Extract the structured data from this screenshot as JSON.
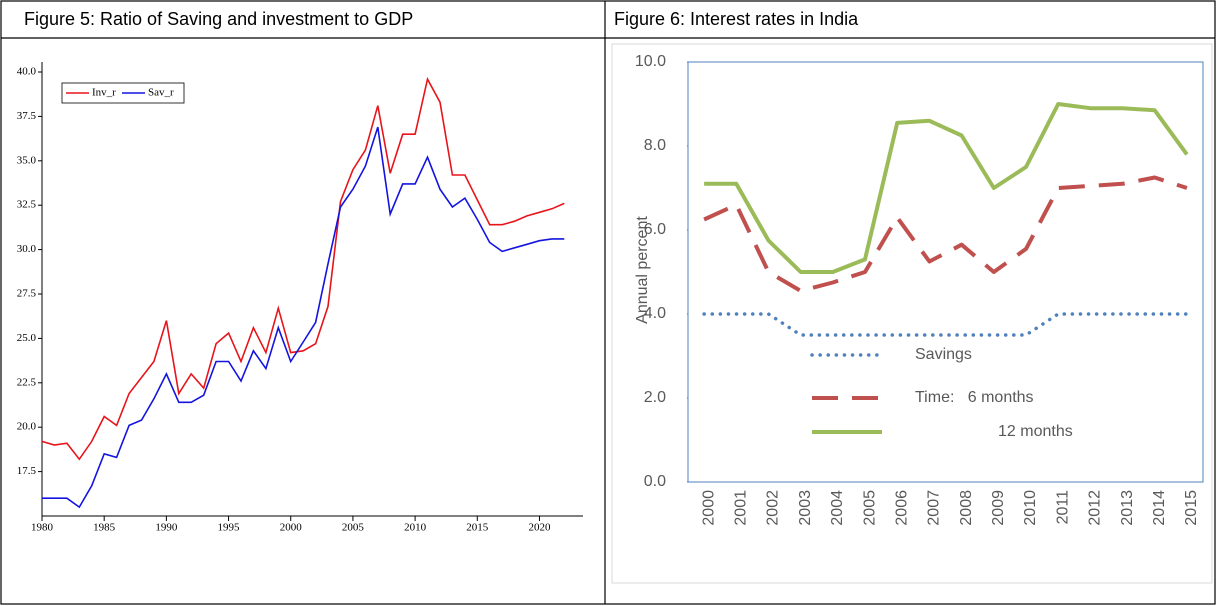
{
  "table": {
    "headers": [
      "Figure 5: Ratio of Saving and investment to GDP",
      "Figure 6: Interest rates in India"
    ]
  },
  "chart_data": [
    {
      "type": "line",
      "x": [
        1980,
        1981,
        1982,
        1983,
        1984,
        1985,
        1986,
        1987,
        1988,
        1989,
        1990,
        1991,
        1992,
        1993,
        1994,
        1995,
        1996,
        1997,
        1998,
        1999,
        2000,
        2001,
        2002,
        2003,
        2004,
        2005,
        2006,
        2007,
        2008,
        2009,
        2010,
        2011,
        2012,
        2013,
        2014,
        2015,
        2016,
        2017,
        2018,
        2019,
        2020,
        2021,
        2022
      ],
      "series": [
        {
          "name": "Inv_r",
          "color": "#e8141b",
          "values": [
            19.2,
            19.0,
            19.1,
            18.2,
            19.2,
            20.6,
            20.1,
            21.9,
            22.8,
            23.7,
            26.0,
            21.9,
            23.0,
            22.2,
            24.7,
            25.3,
            23.7,
            25.6,
            24.2,
            26.7,
            24.2,
            24.3,
            24.7,
            26.8,
            32.7,
            34.5,
            35.6,
            38.1,
            34.3,
            36.5,
            36.5,
            39.6,
            38.3,
            34.2,
            34.2,
            32.8,
            31.4,
            31.4,
            31.6,
            31.9,
            32.1,
            32.3,
            32.6
          ]
        },
        {
          "name": "Sav_r",
          "color": "#1414e0",
          "values": [
            16.0,
            16.0,
            16.0,
            15.5,
            16.7,
            18.5,
            18.3,
            20.1,
            20.4,
            21.6,
            23.0,
            21.4,
            21.4,
            21.8,
            23.7,
            23.7,
            22.6,
            24.3,
            23.3,
            25.6,
            23.7,
            24.8,
            25.9,
            29.2,
            32.4,
            33.4,
            34.7,
            36.9,
            32.0,
            33.7,
            33.7,
            35.2,
            33.4,
            32.4,
            32.9,
            31.7,
            30.4,
            29.9,
            30.1,
            30.3,
            30.5,
            30.6,
            30.6
          ]
        }
      ],
      "xlim": [
        1980,
        2023.5
      ],
      "xticks": [
        1980,
        1985,
        1990,
        1995,
        2000,
        2005,
        2010,
        2015,
        2020
      ],
      "ylim": [
        15,
        40
      ],
      "yticks": [
        17.5,
        {
          "value": 20,
          "label": "20.0"
        },
        22.5,
        {
          "value": 25,
          "label": "25.0"
        },
        27.5,
        {
          "value": 30,
          "label": "30.0"
        },
        32.5,
        {
          "value": 35,
          "label": "35.0"
        },
        37.5,
        {
          "value": 40,
          "label": "40.0"
        }
      ],
      "legend": "top-left"
    },
    {
      "type": "line",
      "y_label": "Annual percent",
      "categories": [
        "2000",
        "2001",
        "2002",
        "2003",
        "2004",
        "2005",
        "2006",
        "2007",
        "2008",
        "2009",
        "2010",
        "2011",
        "2012",
        "2013",
        "2014",
        "2015"
      ],
      "series": [
        {
          "name": "Savings",
          "color": "#4f81bd",
          "style": "dotted",
          "values": [
            4.0,
            4.0,
            4.0,
            3.5,
            3.5,
            3.5,
            3.5,
            3.5,
            3.5,
            3.5,
            3.5,
            4.0,
            4.0,
            4.0,
            4.0,
            4.0
          ]
        },
        {
          "name": "Time:   6 months",
          "color": "#c0504d",
          "style": "dashed",
          "values": [
            6.25,
            6.6,
            5.0,
            4.55,
            4.75,
            5.0,
            6.3,
            5.25,
            5.65,
            5.0,
            5.55,
            7.0,
            7.05,
            7.1,
            7.25,
            7.0
          ]
        },
        {
          "name": "12 months",
          "color": "#9bbb59",
          "style": "solid",
          "values": [
            7.1,
            7.1,
            5.75,
            5.0,
            5.0,
            5.3,
            8.55,
            8.6,
            8.25,
            7.0,
            7.5,
            9.0,
            8.9,
            8.9,
            8.85,
            7.8
          ]
        }
      ],
      "ylim": [
        0,
        10
      ],
      "yticks": [
        {
          "value": 0,
          "label": "0.0"
        },
        {
          "value": 2,
          "label": "2.0"
        },
        {
          "value": 4,
          "label": "4.0"
        },
        {
          "value": 6,
          "label": "6.0"
        },
        {
          "value": 8,
          "label": "8.0"
        },
        {
          "value": 10,
          "label": "10.0"
        }
      ],
      "legend": "bottom-center"
    }
  ]
}
